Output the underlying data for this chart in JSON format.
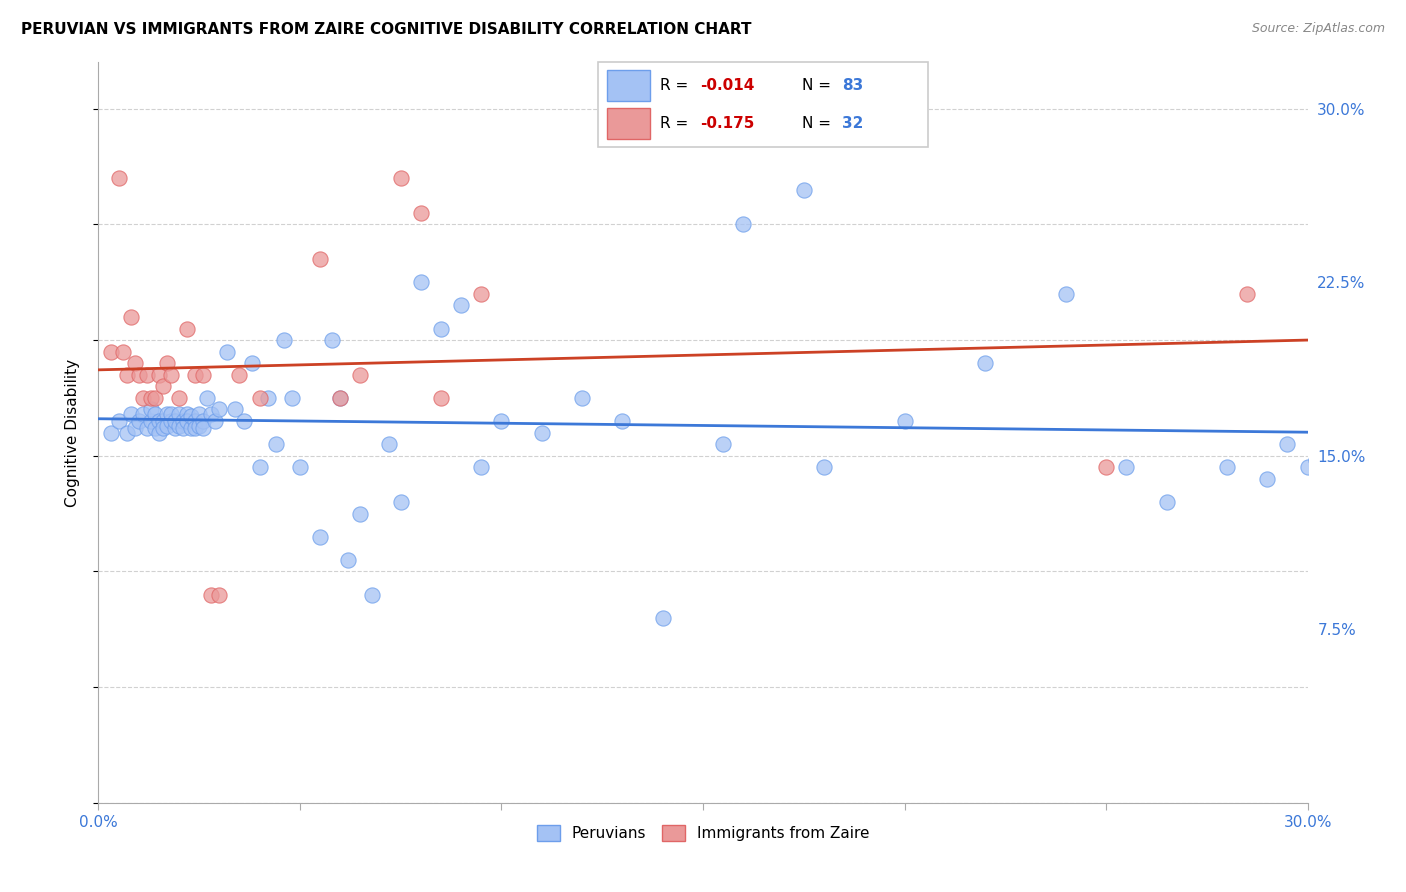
{
  "title": "PERUVIAN VS IMMIGRANTS FROM ZAIRE COGNITIVE DISABILITY CORRELATION CHART",
  "source": "Source: ZipAtlas.com",
  "ylabel": "Cognitive Disability",
  "xlim": [
    0.0,
    0.3
  ],
  "ylim": [
    0.0,
    0.32
  ],
  "legend_r1": "-0.014",
  "legend_n1": "83",
  "legend_r2": "-0.175",
  "legend_n2": "32",
  "blue_face": "#a4c2f4",
  "blue_edge": "#6d9eeb",
  "pink_face": "#ea9999",
  "pink_edge": "#e06666",
  "line_blue": "#3c78d8",
  "line_pink": "#cc4125",
  "text_blue": "#3c78d8",
  "text_red": "#cc0000",
  "grid_color": "#cccccc",
  "background": "#ffffff",
  "blue_scatter_x": [
    0.003,
    0.005,
    0.007,
    0.008,
    0.009,
    0.01,
    0.011,
    0.012,
    0.013,
    0.013,
    0.014,
    0.014,
    0.015,
    0.015,
    0.016,
    0.016,
    0.017,
    0.017,
    0.018,
    0.018,
    0.019,
    0.019,
    0.02,
    0.02,
    0.021,
    0.021,
    0.022,
    0.022,
    0.023,
    0.023,
    0.024,
    0.024,
    0.025,
    0.025,
    0.026,
    0.026,
    0.027,
    0.028,
    0.029,
    0.03,
    0.032,
    0.034,
    0.036,
    0.038,
    0.04,
    0.042,
    0.044,
    0.046,
    0.048,
    0.05,
    0.055,
    0.058,
    0.06,
    0.062,
    0.065,
    0.068,
    0.072,
    0.075,
    0.08,
    0.085,
    0.09,
    0.095,
    0.1,
    0.11,
    0.12,
    0.13,
    0.14,
    0.155,
    0.16,
    0.175,
    0.18,
    0.2,
    0.22,
    0.24,
    0.255,
    0.265,
    0.28,
    0.29,
    0.295,
    0.3,
    0.302,
    0.305,
    0.308
  ],
  "blue_scatter_y": [
    0.16,
    0.165,
    0.16,
    0.168,
    0.162,
    0.165,
    0.168,
    0.162,
    0.165,
    0.17,
    0.162,
    0.168,
    0.165,
    0.16,
    0.165,
    0.162,
    0.168,
    0.163,
    0.165,
    0.168,
    0.162,
    0.165,
    0.168,
    0.163,
    0.165,
    0.162,
    0.168,
    0.165,
    0.162,
    0.167,
    0.165,
    0.162,
    0.168,
    0.163,
    0.165,
    0.162,
    0.175,
    0.168,
    0.165,
    0.17,
    0.195,
    0.17,
    0.165,
    0.19,
    0.145,
    0.175,
    0.155,
    0.2,
    0.175,
    0.145,
    0.115,
    0.2,
    0.175,
    0.105,
    0.125,
    0.09,
    0.155,
    0.13,
    0.225,
    0.205,
    0.215,
    0.145,
    0.165,
    0.16,
    0.175,
    0.165,
    0.08,
    0.155,
    0.25,
    0.265,
    0.145,
    0.165,
    0.19,
    0.22,
    0.145,
    0.13,
    0.145,
    0.14,
    0.155,
    0.145,
    0.148,
    0.152,
    0.155
  ],
  "pink_scatter_x": [
    0.003,
    0.005,
    0.006,
    0.007,
    0.008,
    0.009,
    0.01,
    0.011,
    0.012,
    0.013,
    0.014,
    0.015,
    0.016,
    0.017,
    0.018,
    0.02,
    0.022,
    0.024,
    0.026,
    0.028,
    0.03,
    0.035,
    0.04,
    0.055,
    0.06,
    0.065,
    0.075,
    0.08,
    0.085,
    0.095,
    0.25,
    0.285
  ],
  "pink_scatter_y": [
    0.195,
    0.27,
    0.195,
    0.185,
    0.21,
    0.19,
    0.185,
    0.175,
    0.185,
    0.175,
    0.175,
    0.185,
    0.18,
    0.19,
    0.185,
    0.175,
    0.205,
    0.185,
    0.185,
    0.09,
    0.09,
    0.185,
    0.175,
    0.235,
    0.175,
    0.185,
    0.27,
    0.255,
    0.175,
    0.22,
    0.145,
    0.22
  ]
}
